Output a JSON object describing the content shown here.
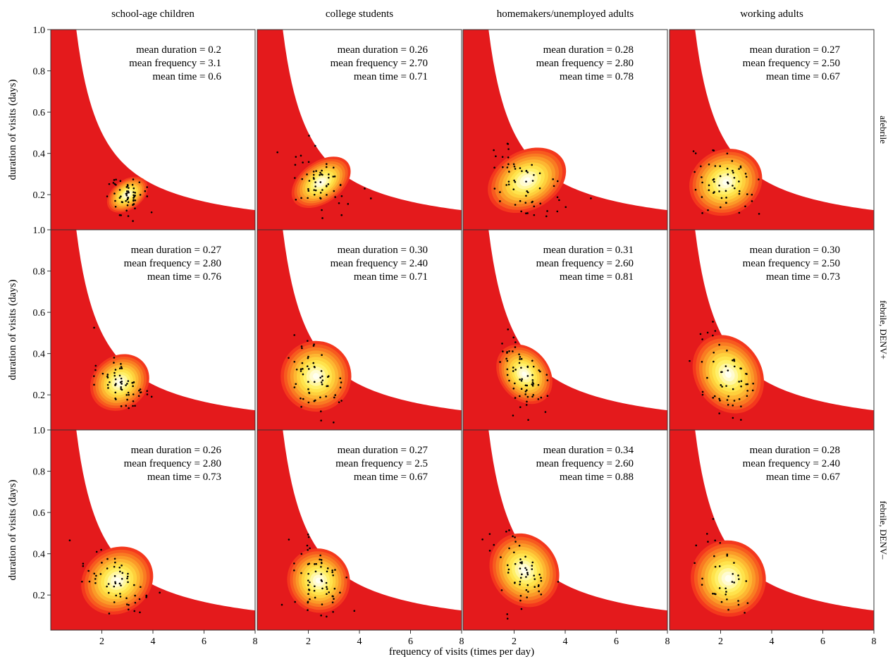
{
  "figure": {
    "xlabel": "frequency of visits (times per day)",
    "ylabel": "duration of visits (days)",
    "columns": [
      "school-age children",
      "college students",
      "homemakers/unemployed adults",
      "working adults"
    ],
    "rows": [
      "afebrile",
      "febrile, DENV+",
      "febrile, DENV–"
    ]
  },
  "chart_data": {
    "type": "scatter",
    "layout": "facet-grid 3 rows × 4 columns, each panel a density contour (red → yellow → white) with point overlay",
    "xlim": [
      0,
      8
    ],
    "ylim": [
      0.03,
      1.0
    ],
    "xticks": [
      2,
      4,
      6,
      8
    ],
    "yticks": [
      0.2,
      0.4,
      0.6,
      0.8,
      1.0
    ],
    "ytick_labels": [
      "0.2",
      "0.4",
      "0.6",
      "0.8",
      "1.0"
    ],
    "colors": {
      "background": "#e41a1c",
      "mid": "#ff8c00",
      "high": "#ffee44",
      "peak": "#fffff0",
      "points": "#000000"
    },
    "panels": [
      {
        "row": 0,
        "col": 0,
        "annotations": [
          "mean duration = 0.2",
          "mean frequency = 3.1",
          "mean time = 0.6"
        ],
        "mean_duration": 0.2,
        "mean_frequency": 3.1,
        "mean_time": 0.6,
        "density_center": [
          3.0,
          0.2
        ],
        "density_spread": [
          0.55,
          0.05
        ],
        "density_corr": -0.82
      },
      {
        "row": 0,
        "col": 1,
        "annotations": [
          "mean duration = 0.26",
          "mean frequency = 2.70",
          "mean time = 0.71"
        ],
        "mean_duration": 0.26,
        "mean_frequency": 2.7,
        "mean_time": 0.71,
        "density_center": [
          2.5,
          0.26
        ],
        "density_spread": [
          0.8,
          0.07
        ],
        "density_corr": -0.8
      },
      {
        "row": 0,
        "col": 2,
        "annotations": [
          "mean duration = 0.28",
          "mean frequency = 2.80",
          "mean time = 0.78"
        ],
        "mean_duration": 0.28,
        "mean_frequency": 2.8,
        "mean_time": 0.78,
        "density_center": [
          2.5,
          0.27
        ],
        "density_spread": [
          1.0,
          0.1
        ],
        "density_corr": -0.6
      },
      {
        "row": 0,
        "col": 3,
        "annotations": [
          "mean duration = 0.27",
          "mean frequency = 2.50",
          "mean time = 0.67"
        ],
        "mean_duration": 0.27,
        "mean_frequency": 2.5,
        "mean_time": 0.67,
        "density_center": [
          2.2,
          0.26
        ],
        "density_spread": [
          0.9,
          0.11
        ],
        "density_corr": -0.55
      },
      {
        "row": 1,
        "col": 0,
        "annotations": [
          "mean duration = 0.27",
          "mean frequency = 2.80",
          "mean time = 0.76"
        ],
        "mean_duration": 0.27,
        "mean_frequency": 2.8,
        "mean_time": 0.76,
        "density_center": [
          2.7,
          0.26
        ],
        "density_spread": [
          0.75,
          0.09
        ],
        "density_corr": -0.85
      },
      {
        "row": 1,
        "col": 1,
        "annotations": [
          "mean duration = 0.30",
          "mean frequency = 2.40",
          "mean time = 0.71"
        ],
        "mean_duration": 0.3,
        "mean_frequency": 2.4,
        "mean_time": 0.71,
        "density_center": [
          2.3,
          0.29
        ],
        "density_spread": [
          0.85,
          0.12
        ],
        "density_corr": -0.72
      },
      {
        "row": 1,
        "col": 2,
        "annotations": [
          "mean duration = 0.31",
          "mean frequency = 2.60",
          "mean time = 0.81"
        ],
        "mean_duration": 0.31,
        "mean_frequency": 2.6,
        "mean_time": 0.81,
        "density_center": [
          2.4,
          0.3
        ],
        "density_spread": [
          0.6,
          0.11
        ],
        "density_corr": -0.88
      },
      {
        "row": 1,
        "col": 3,
        "annotations": [
          "mean duration = 0.30",
          "mean frequency = 2.50",
          "mean time = 0.73"
        ],
        "mean_duration": 0.3,
        "mean_frequency": 2.5,
        "mean_time": 0.73,
        "density_center": [
          2.3,
          0.3
        ],
        "density_spread": [
          0.8,
          0.14
        ],
        "density_corr": -0.7
      },
      {
        "row": 2,
        "col": 0,
        "annotations": [
          "mean duration = 0.26",
          "mean frequency = 2.80",
          "mean time = 0.73"
        ],
        "mean_duration": 0.26,
        "mean_frequency": 2.8,
        "mean_time": 0.73,
        "density_center": [
          2.6,
          0.27
        ],
        "density_spread": [
          0.9,
          0.11
        ],
        "density_corr": -0.72
      },
      {
        "row": 2,
        "col": 1,
        "annotations": [
          "mean duration = 0.27",
          "mean frequency = 2.5",
          "mean time = 0.67"
        ],
        "mean_duration": 0.27,
        "mean_frequency": 2.5,
        "mean_time": 0.67,
        "density_center": [
          2.4,
          0.27
        ],
        "density_spread": [
          0.75,
          0.11
        ],
        "density_corr": -0.6
      },
      {
        "row": 2,
        "col": 2,
        "annotations": [
          "mean duration = 0.34",
          "mean frequency = 2.60",
          "mean time = 0.88"
        ],
        "mean_duration": 0.34,
        "mean_frequency": 2.6,
        "mean_time": 0.88,
        "density_center": [
          2.4,
          0.32
        ],
        "density_spread": [
          0.8,
          0.13
        ],
        "density_corr": -0.75
      },
      {
        "row": 2,
        "col": 3,
        "annotations": [
          "mean duration = 0.28",
          "mean frequency = 2.40",
          "mean time = 0.67"
        ],
        "mean_duration": 0.28,
        "mean_frequency": 2.4,
        "mean_time": 0.67,
        "density_center": [
          2.3,
          0.28
        ],
        "density_spread": [
          0.9,
          0.13
        ],
        "density_corr": -0.6
      }
    ]
  }
}
